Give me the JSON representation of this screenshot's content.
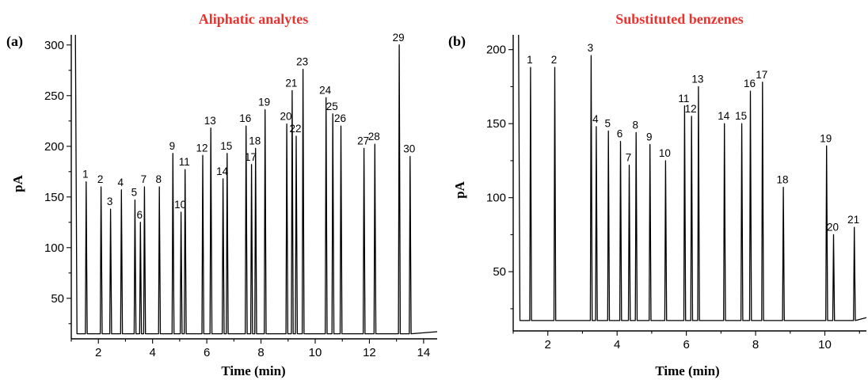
{
  "chart_data": [
    {
      "type": "line",
      "panel_label": "(a)",
      "title": "Aliphatic analytes",
      "xlabel": "Time (min)",
      "ylabel": "pA",
      "xlim": [
        1,
        14.5
      ],
      "ylim": [
        10,
        310
      ],
      "xticks": [
        2,
        4,
        6,
        8,
        10,
        12,
        14
      ],
      "yticks": [
        50,
        100,
        150,
        200,
        250,
        300
      ],
      "baseline": 15,
      "solvent_peak_time": 1.15,
      "grid": false,
      "peaks": [
        {
          "label": "1",
          "time": 1.55,
          "height": 165
        },
        {
          "label": "2",
          "time": 2.1,
          "height": 160
        },
        {
          "label": "3",
          "time": 2.45,
          "height": 138
        },
        {
          "label": "4",
          "time": 2.85,
          "height": 157
        },
        {
          "label": "5",
          "time": 3.35,
          "height": 147
        },
        {
          "label": "6",
          "time": 3.55,
          "height": 125
        },
        {
          "label": "7",
          "time": 3.7,
          "height": 160
        },
        {
          "label": "8",
          "time": 4.25,
          "height": 160
        },
        {
          "label": "9",
          "time": 4.75,
          "height": 193
        },
        {
          "label": "10",
          "time": 5.05,
          "height": 135
        },
        {
          "label": "11",
          "time": 5.2,
          "height": 177
        },
        {
          "label": "12",
          "time": 5.85,
          "height": 191
        },
        {
          "label": "13",
          "time": 6.15,
          "height": 218
        },
        {
          "label": "14",
          "time": 6.6,
          "height": 168
        },
        {
          "label": "15",
          "time": 6.75,
          "height": 193
        },
        {
          "label": "16",
          "time": 7.45,
          "height": 220
        },
        {
          "label": "17",
          "time": 7.65,
          "height": 182
        },
        {
          "label": "18",
          "time": 7.8,
          "height": 198
        },
        {
          "label": "19",
          "time": 8.15,
          "height": 236
        },
        {
          "label": "20",
          "time": 8.95,
          "height": 222
        },
        {
          "label": "21",
          "time": 9.15,
          "height": 255
        },
        {
          "label": "22",
          "time": 9.3,
          "height": 210
        },
        {
          "label": "23",
          "time": 9.55,
          "height": 276
        },
        {
          "label": "24",
          "time": 10.4,
          "height": 248
        },
        {
          "label": "25",
          "time": 10.65,
          "height": 232
        },
        {
          "label": "26",
          "time": 10.95,
          "height": 220
        },
        {
          "label": "27",
          "time": 11.8,
          "height": 198
        },
        {
          "label": "28",
          "time": 12.2,
          "height": 202
        },
        {
          "label": "29",
          "time": 13.1,
          "height": 300
        },
        {
          "label": "30",
          "time": 13.5,
          "height": 190
        }
      ]
    },
    {
      "type": "line",
      "panel_label": "(b)",
      "title": "Substituted benzenes",
      "xlabel": "Time (min)",
      "ylabel": "pA",
      "xlim": [
        1,
        11.2
      ],
      "ylim": [
        10,
        210
      ],
      "xticks": [
        2,
        4,
        6,
        8,
        10
      ],
      "yticks": [
        50,
        100,
        150,
        200
      ],
      "baseline": 17,
      "solvent_peak_time": 1.15,
      "grid": false,
      "peaks": [
        {
          "label": "1",
          "time": 1.5,
          "height": 188
        },
        {
          "label": "2",
          "time": 2.2,
          "height": 188
        },
        {
          "label": "3",
          "time": 3.25,
          "height": 196
        },
        {
          "label": "4",
          "time": 3.4,
          "height": 148
        },
        {
          "label": "5",
          "time": 3.75,
          "height": 145
        },
        {
          "label": "6",
          "time": 4.1,
          "height": 138
        },
        {
          "label": "7",
          "time": 4.35,
          "height": 122
        },
        {
          "label": "8",
          "time": 4.55,
          "height": 144
        },
        {
          "label": "9",
          "time": 4.95,
          "height": 136
        },
        {
          "label": "10",
          "time": 5.4,
          "height": 125
        },
        {
          "label": "11",
          "time": 5.95,
          "height": 162
        },
        {
          "label": "12",
          "time": 6.15,
          "height": 155
        },
        {
          "label": "13",
          "time": 6.35,
          "height": 175
        },
        {
          "label": "14",
          "time": 7.1,
          "height": 150
        },
        {
          "label": "15",
          "time": 7.6,
          "height": 150
        },
        {
          "label": "16",
          "time": 7.85,
          "height": 172
        },
        {
          "label": "17",
          "time": 8.2,
          "height": 178
        },
        {
          "label": "18",
          "time": 8.8,
          "height": 107
        },
        {
          "label": "19",
          "time": 10.05,
          "height": 135
        },
        {
          "label": "20",
          "time": 10.25,
          "height": 75
        },
        {
          "label": "21",
          "time": 10.85,
          "height": 80
        }
      ]
    }
  ]
}
